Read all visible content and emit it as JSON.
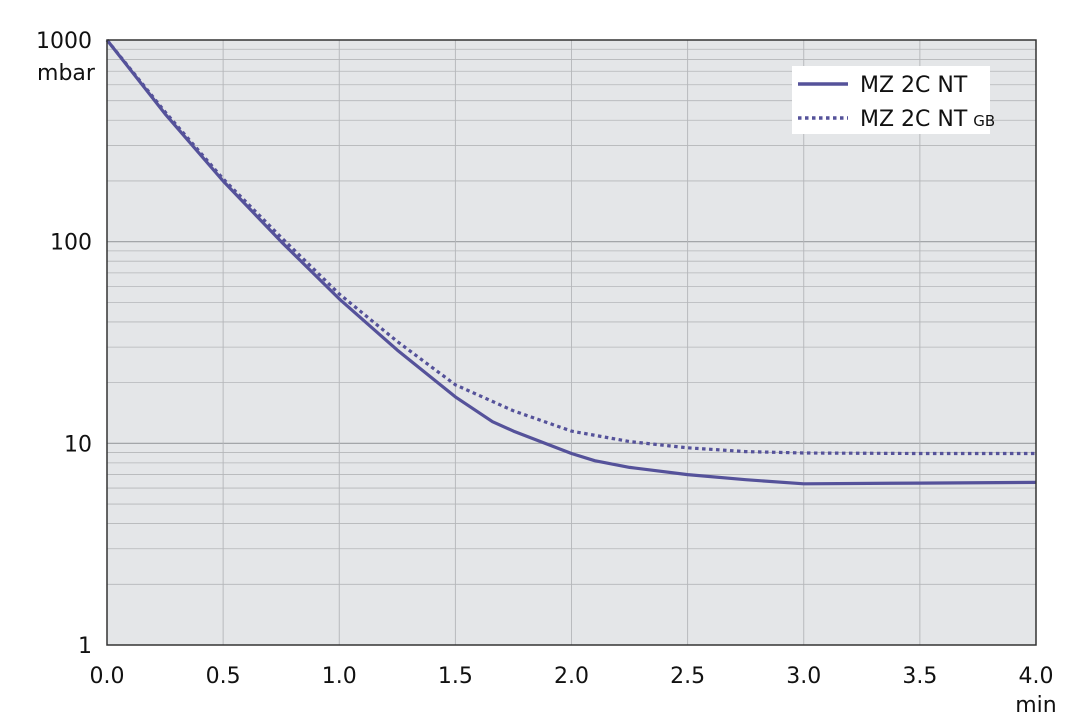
{
  "chart_data": {
    "type": "line",
    "x_unit": "min",
    "y_unit": "mbar",
    "xlim": [
      0,
      4
    ],
    "ylim": [
      1,
      1000
    ],
    "y_scale": "log",
    "grid": true,
    "legend_position": "top-right",
    "background": "#e4e6e8",
    "x_ticks": [
      "0.0",
      "0.5",
      "1.0",
      "1.5",
      "2.0",
      "2.5",
      "3.0",
      "3.5",
      "4.0"
    ],
    "y_ticks": [
      "1",
      "10",
      "100",
      "1000"
    ],
    "series": [
      {
        "name": "MZ 2C NT",
        "style": "solid",
        "color": "#55529a",
        "x": [
          0,
          0.25,
          0.5,
          0.75,
          1.0,
          1.25,
          1.5,
          1.66,
          1.75,
          2.0,
          2.1,
          2.25,
          2.5,
          2.75,
          3.0,
          3.5,
          4.0
        ],
        "y": [
          1000,
          430,
          200,
          100,
          52,
          29,
          17,
          12.8,
          11.5,
          8.9,
          8.2,
          7.6,
          7.0,
          6.6,
          6.3,
          6.35,
          6.4
        ]
      },
      {
        "name": "MZ 2C NT",
        "name_suffix": "GB",
        "style": "dotted",
        "color": "#55529a",
        "x": [
          0,
          0.25,
          0.5,
          0.75,
          1.0,
          1.25,
          1.5,
          1.75,
          2.0,
          2.25,
          2.5,
          2.75,
          3.0,
          3.5,
          4.0
        ],
        "y": [
          1000,
          440,
          205,
          105,
          55,
          32,
          19.5,
          14.5,
          11.5,
          10.2,
          9.5,
          9.1,
          8.95,
          8.9,
          8.9
        ]
      }
    ]
  }
}
